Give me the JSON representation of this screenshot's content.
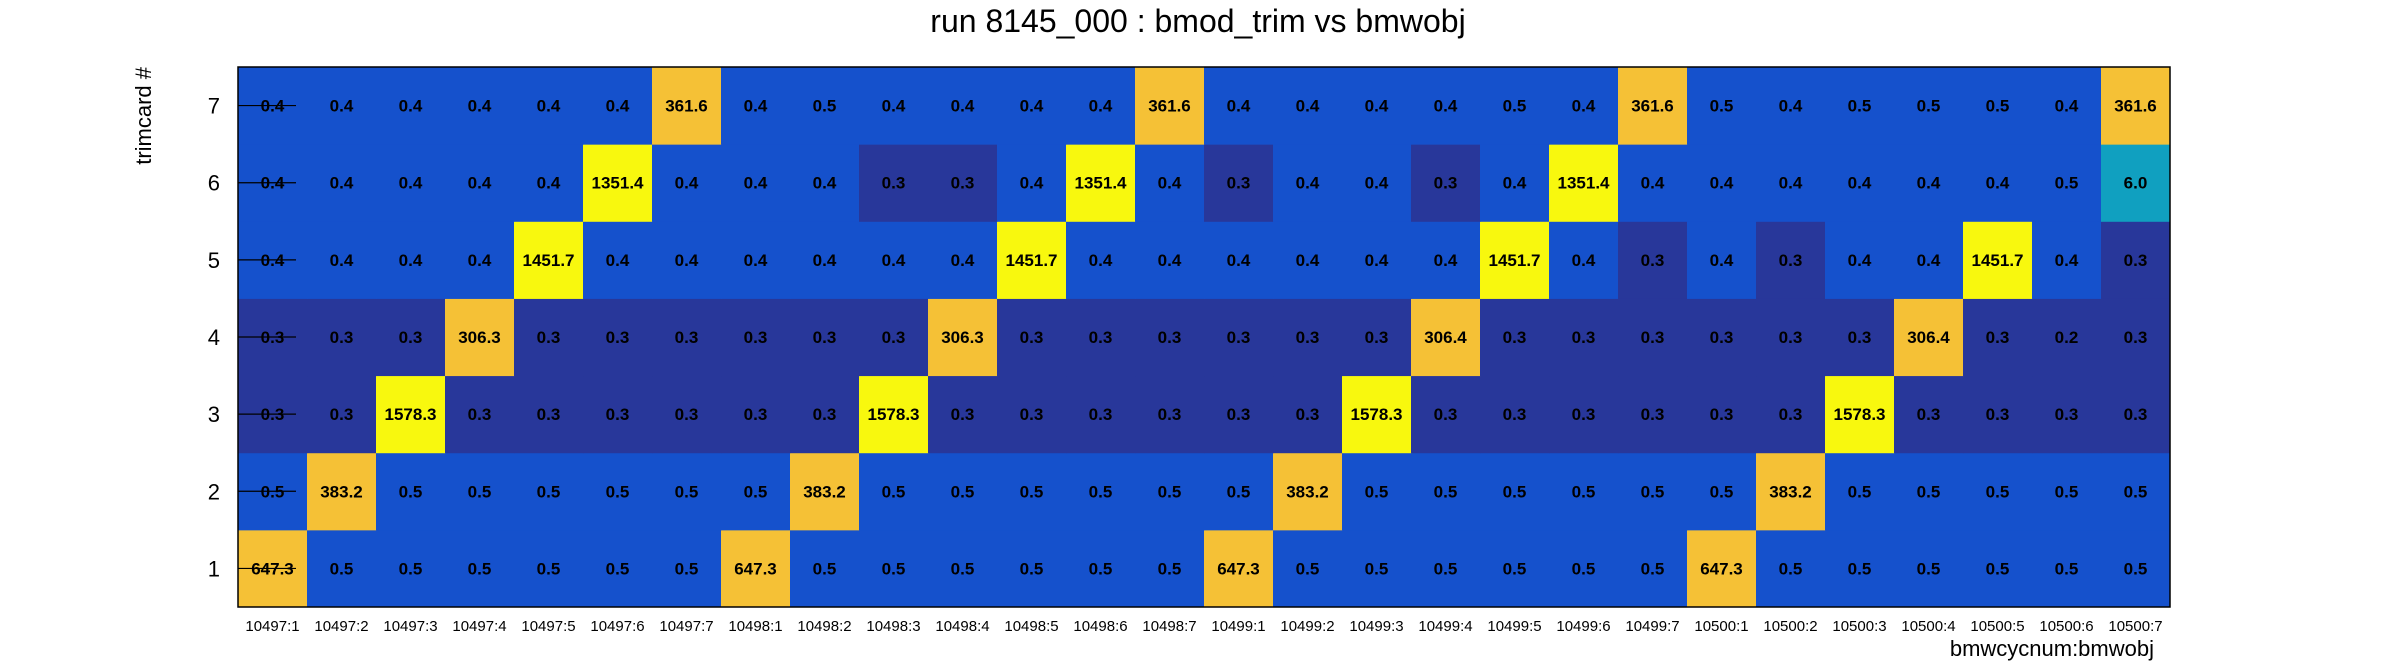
{
  "chart_data": {
    "type": "heatmap",
    "title": "run 8145_000 : bmod_trim vs bmwobj",
    "xlabel": "bmwcycnum:bmwobj",
    "ylabel": "trimcard #",
    "x_categories": [
      "10497:1",
      "10497:2",
      "10497:3",
      "10497:4",
      "10497:5",
      "10497:6",
      "10497:7",
      "10498:1",
      "10498:2",
      "10498:3",
      "10498:4",
      "10498:5",
      "10498:6",
      "10498:7",
      "10499:1",
      "10499:2",
      "10499:3",
      "10499:4",
      "10499:5",
      "10499:6",
      "10499:7",
      "10500:1",
      "10500:2",
      "10500:3",
      "10500:4",
      "10500:5",
      "10500:6",
      "10500:7"
    ],
    "y_categories": [
      "1",
      "2",
      "3",
      "4",
      "5",
      "6",
      "7"
    ],
    "values": [
      [
        647.3,
        0.5,
        0.5,
        0.5,
        0.5,
        0.5,
        0.5,
        647.3,
        0.5,
        0.5,
        0.5,
        0.5,
        0.5,
        0.5,
        647.3,
        0.5,
        0.5,
        0.5,
        0.5,
        0.5,
        0.5,
        647.3,
        0.5,
        0.5,
        0.5,
        0.5,
        0.5,
        0.5
      ],
      [
        0.5,
        383.2,
        0.5,
        0.5,
        0.5,
        0.5,
        0.5,
        0.5,
        383.2,
        0.5,
        0.5,
        0.5,
        0.5,
        0.5,
        0.5,
        383.2,
        0.5,
        0.5,
        0.5,
        0.5,
        0.5,
        0.5,
        383.2,
        0.5,
        0.5,
        0.5,
        0.5,
        0.5
      ],
      [
        0.3,
        0.3,
        1578.3,
        0.3,
        0.3,
        0.3,
        0.3,
        0.3,
        0.3,
        1578.3,
        0.3,
        0.3,
        0.3,
        0.3,
        0.3,
        0.3,
        1578.3,
        0.3,
        0.3,
        0.3,
        0.3,
        0.3,
        0.3,
        1578.3,
        0.3,
        0.3,
        0.3,
        0.3
      ],
      [
        0.3,
        0.3,
        0.3,
        306.3,
        0.3,
        0.3,
        0.3,
        0.3,
        0.3,
        0.3,
        306.3,
        0.3,
        0.3,
        0.3,
        0.3,
        0.3,
        0.3,
        306.4,
        0.3,
        0.3,
        0.3,
        0.3,
        0.3,
        0.3,
        306.4,
        0.3,
        0.2,
        0.3
      ],
      [
        0.4,
        0.4,
        0.4,
        0.4,
        1451.7,
        0.4,
        0.4,
        0.4,
        0.4,
        0.4,
        0.4,
        1451.7,
        0.4,
        0.4,
        0.4,
        0.4,
        0.4,
        0.4,
        1451.7,
        0.4,
        0.3,
        0.4,
        0.3,
        0.4,
        0.4,
        1451.7,
        0.4,
        0.3
      ],
      [
        0.4,
        0.4,
        0.4,
        0.4,
        0.4,
        1351.4,
        0.4,
        0.4,
        0.4,
        0.3,
        0.3,
        0.4,
        1351.4,
        0.4,
        0.3,
        0.4,
        0.4,
        0.3,
        0.4,
        1351.4,
        0.4,
        0.4,
        0.4,
        0.4,
        0.4,
        0.4,
        0.5,
        6.0
      ],
      [
        0.4,
        0.4,
        0.4,
        0.4,
        0.4,
        0.4,
        361.6,
        0.4,
        0.5,
        0.4,
        0.4,
        0.4,
        0.4,
        361.6,
        0.4,
        0.4,
        0.4,
        0.4,
        0.5,
        0.4,
        361.6,
        0.5,
        0.4,
        0.5,
        0.5,
        0.5,
        0.4,
        361.6
      ]
    ],
    "colors": {
      "low": "#28379a",
      "mid": "#1551cc",
      "teal": "#10a0c0",
      "orange": "#f5c136",
      "yellow": "#f8f80e"
    },
    "grid": false,
    "legend": "none"
  }
}
